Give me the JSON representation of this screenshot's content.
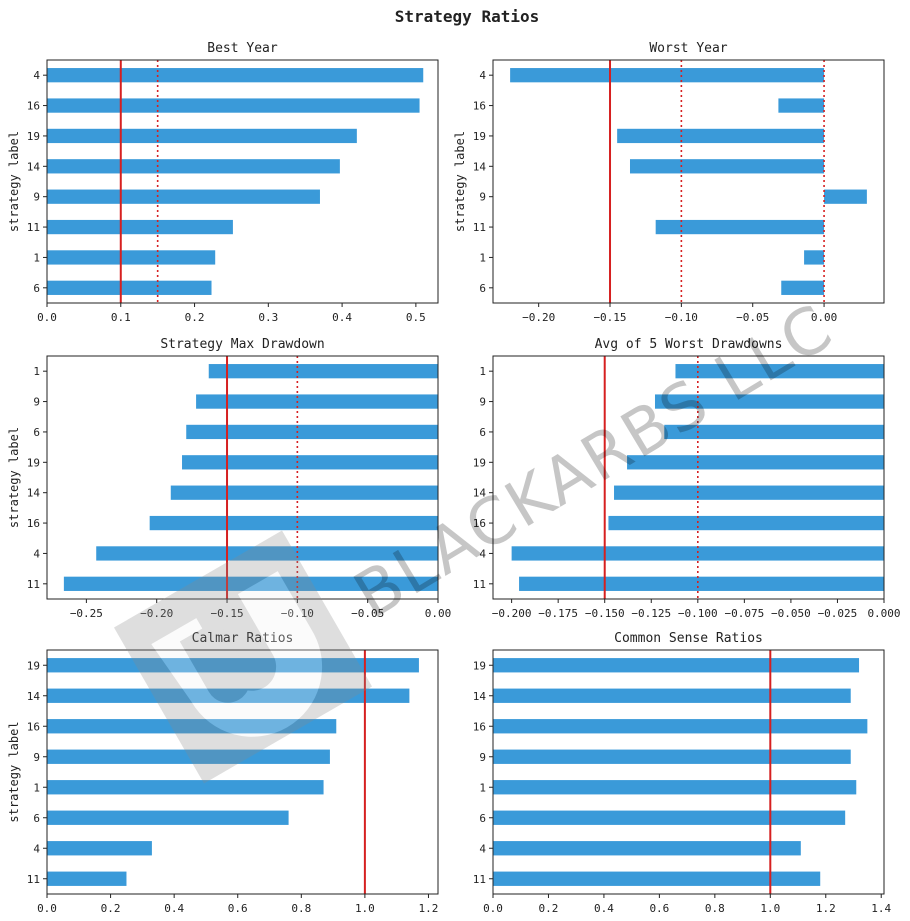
{
  "title": "Strategy Ratios",
  "watermark": {
    "text": "BLACKARBS LLC",
    "logo": "bl-logo-icon"
  },
  "colors": {
    "bar": "#3a9ad9",
    "line": "#d62020",
    "frame": "#222222"
  },
  "chart_data": [
    {
      "type": "bar",
      "orientation": "horizontal",
      "title": "Best Year",
      "ylabel": "strategy label",
      "categories": [
        "4",
        "16",
        "19",
        "14",
        "9",
        "11",
        "1",
        "6"
      ],
      "values": [
        0.51,
        0.505,
        0.42,
        0.397,
        0.37,
        0.252,
        0.228,
        0.223
      ],
      "xlim": [
        0.0,
        0.53
      ],
      "xticks": [
        0.0,
        0.1,
        0.2,
        0.3,
        0.4,
        0.5
      ],
      "xtick_labels": [
        "0.0",
        "0.1",
        "0.2",
        "0.3",
        "0.4",
        "0.5"
      ],
      "ref_lines": [
        {
          "x": 0.1,
          "style": "solid"
        },
        {
          "x": 0.15,
          "style": "dotted"
        }
      ]
    },
    {
      "type": "bar",
      "orientation": "horizontal",
      "title": "Worst Year",
      "ylabel": "strategy label",
      "categories": [
        "4",
        "16",
        "19",
        "14",
        "9",
        "11",
        "1",
        "6"
      ],
      "values": [
        -0.22,
        -0.032,
        -0.145,
        -0.136,
        0.03,
        -0.118,
        -0.014,
        -0.03
      ],
      "xlim": [
        -0.232,
        0.042
      ],
      "xticks": [
        -0.2,
        -0.15,
        -0.1,
        -0.05,
        0.0
      ],
      "xtick_labels": [
        "−0.20",
        "−0.15",
        "−0.10",
        "−0.05",
        "0.00"
      ],
      "ref_lines": [
        {
          "x": -0.15,
          "style": "solid"
        },
        {
          "x": -0.1,
          "style": "dotted"
        },
        {
          "x": 0.0,
          "style": "dotted"
        }
      ]
    },
    {
      "type": "bar",
      "orientation": "horizontal",
      "title": "Strategy Max Drawdown",
      "ylabel": "strategy label",
      "categories": [
        "1",
        "9",
        "6",
        "19",
        "14",
        "16",
        "4",
        "11"
      ],
      "values": [
        -0.163,
        -0.172,
        -0.179,
        -0.182,
        -0.19,
        -0.205,
        -0.243,
        -0.266
      ],
      "xlim": [
        -0.278,
        0.0
      ],
      "xticks": [
        -0.25,
        -0.2,
        -0.15,
        -0.1,
        -0.05,
        0.0
      ],
      "xtick_labels": [
        "−0.25",
        "−0.20",
        "−0.15",
        "−0.10",
        "−0.05",
        "0.00"
      ],
      "ref_lines": [
        {
          "x": -0.15,
          "style": "solid"
        },
        {
          "x": -0.1,
          "style": "dotted"
        }
      ]
    },
    {
      "type": "bar",
      "orientation": "horizontal",
      "title": "Avg of 5 Worst Drawdowns",
      "ylabel": "",
      "categories": [
        "1",
        "9",
        "6",
        "19",
        "14",
        "16",
        "4",
        "11"
      ],
      "values": [
        -0.112,
        -0.123,
        -0.118,
        -0.138,
        -0.145,
        -0.148,
        -0.2,
        -0.196
      ],
      "xlim": [
        -0.21,
        0.0
      ],
      "xticks": [
        -0.2,
        -0.175,
        -0.15,
        -0.125,
        -0.1,
        -0.075,
        -0.05,
        -0.025,
        0.0
      ],
      "xtick_labels": [
        "−0.200",
        "−0.175",
        "−0.150",
        "−0.125",
        "−0.100",
        "−0.075",
        "−0.050",
        "−0.025",
        "0.000"
      ],
      "ref_lines": [
        {
          "x": -0.15,
          "style": "solid"
        },
        {
          "x": -0.1,
          "style": "dotted"
        }
      ]
    },
    {
      "type": "bar",
      "orientation": "horizontal",
      "title": "Calmar Ratios",
      "ylabel": "strategy label",
      "categories": [
        "19",
        "14",
        "16",
        "9",
        "1",
        "6",
        "4",
        "11"
      ],
      "values": [
        1.17,
        1.14,
        0.91,
        0.89,
        0.87,
        0.76,
        0.33,
        0.25
      ],
      "xlim": [
        0.0,
        1.23
      ],
      "xticks": [
        0.0,
        0.2,
        0.4,
        0.6,
        0.8,
        1.0,
        1.2
      ],
      "xtick_labels": [
        "0.0",
        "0.2",
        "0.4",
        "0.6",
        "0.8",
        "1.0",
        "1.2"
      ],
      "ref_lines": [
        {
          "x": 1.0,
          "style": "solid"
        }
      ]
    },
    {
      "type": "bar",
      "orientation": "horizontal",
      "title": "Common Sense Ratios",
      "ylabel": "",
      "categories": [
        "19",
        "14",
        "16",
        "9",
        "1",
        "6",
        "4",
        "11"
      ],
      "values": [
        1.32,
        1.29,
        1.35,
        1.29,
        1.31,
        1.27,
        1.11,
        1.18
      ],
      "xlim": [
        0.0,
        1.41
      ],
      "xticks": [
        0.0,
        0.2,
        0.4,
        0.6,
        0.8,
        1.0,
        1.2,
        1.4
      ],
      "xtick_labels": [
        "0.0",
        "0.2",
        "0.4",
        "0.6",
        "0.8",
        "1.0",
        "1.2",
        "1.4"
      ],
      "ref_lines": [
        {
          "x": 1.0,
          "style": "solid"
        }
      ]
    }
  ]
}
